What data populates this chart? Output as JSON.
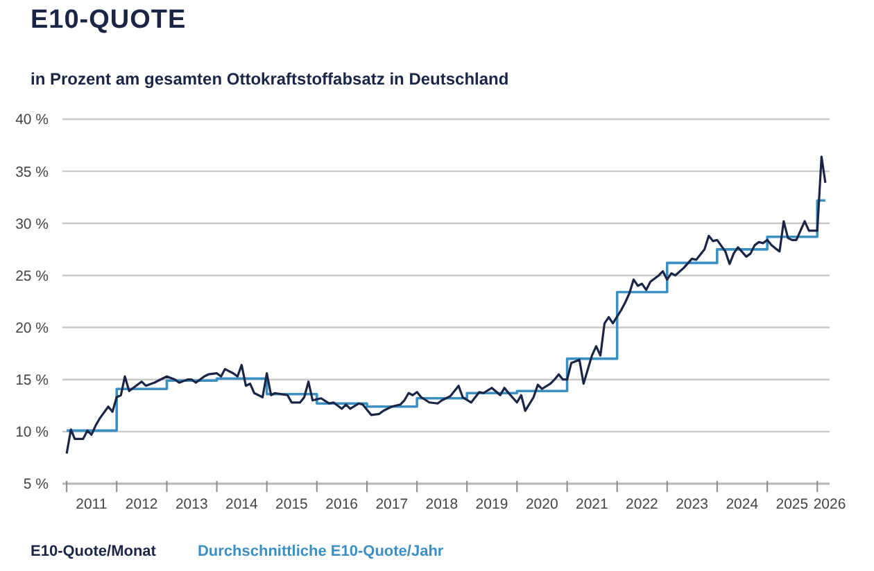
{
  "chart_data": {
    "type": "line",
    "title": "E10-QUOTE",
    "subtitle": "in Prozent am gesamten Ottokraftstoffabsatz in Deutschland",
    "xlim": [
      "2010-12",
      "2026-04"
    ],
    "xticks": [
      {
        "value": "2011-01-01",
        "label": null
      },
      {
        "value": "2011-07-01",
        "label": "2011"
      },
      {
        "value": "2012-01-01",
        "label": null
      },
      {
        "value": "2012-07-01",
        "label": "2012"
      },
      {
        "value": "2013-01-01",
        "label": null
      },
      {
        "value": "2013-07-01",
        "label": "2013"
      },
      {
        "value": "2014-01-01",
        "label": null
      },
      {
        "value": "2014-07-01",
        "label": "2014"
      },
      {
        "value": "2015-01-01",
        "label": null
      },
      {
        "value": "2015-07-01",
        "label": "2015"
      },
      {
        "value": "2016-01-01",
        "label": null
      },
      {
        "value": "2016-07-01",
        "label": "2016"
      },
      {
        "value": "2017-01-01",
        "label": null
      },
      {
        "value": "2017-07-01",
        "label": "2017"
      },
      {
        "value": "2018-01-01",
        "label": null
      },
      {
        "value": "2018-07-01",
        "label": "2018"
      },
      {
        "value": "2019-01-01",
        "label": null
      },
      {
        "value": "2019-07-01",
        "label": "2019"
      },
      {
        "value": "2020-01-01",
        "label": null
      },
      {
        "value": "2020-07-01",
        "label": "2020"
      },
      {
        "value": "2021-01-01",
        "label": null
      },
      {
        "value": "2021-07-01",
        "label": "2021"
      },
      {
        "value": "2022-01-01",
        "label": null
      },
      {
        "value": "2022-07-01",
        "label": "2022"
      },
      {
        "value": "2023-01-01",
        "label": null
      },
      {
        "value": "2023-07-01",
        "label": "2023"
      },
      {
        "value": "2024-01-01",
        "label": null
      },
      {
        "value": "2024-07-01",
        "label": "2024"
      },
      {
        "value": "2025-01-01",
        "label": null
      },
      {
        "value": "2025-07-01",
        "label": "2025"
      },
      {
        "value": "2026-01-01",
        "label": null
      },
      {
        "value": "2026-04-01",
        "label": "2026"
      }
    ],
    "ylim": [
      5,
      40
    ],
    "yticks": [
      {
        "value": 5,
        "label": "5 %"
      },
      {
        "value": 10,
        "label": "10 %"
      },
      {
        "value": 15,
        "label": "15 %"
      },
      {
        "value": 20,
        "label": "20 %"
      },
      {
        "value": 25,
        "label": "25 %"
      },
      {
        "value": 30,
        "label": "30 %"
      },
      {
        "value": 35,
        "label": "35 %"
      },
      {
        "value": 40,
        "label": "40 %"
      }
    ],
    "grid": "y",
    "legend": "bottom left",
    "marker": "none",
    "series": [
      {
        "name": "E10-Quote/Monat",
        "type": "line",
        "color": "#1b2545",
        "x": [
          "2011-01",
          "2011-02",
          "2011-03",
          "2011-05",
          "2011-06",
          "2011-07",
          "2011-08",
          "2011-09",
          "2011-11",
          "2011-12",
          "2012-01",
          "2012-02",
          "2012-03",
          "2012-04",
          "2012-05",
          "2012-07",
          "2012-08",
          "2012-10",
          "2012-12",
          "2013-01",
          "2013-03",
          "2013-04",
          "2013-06",
          "2013-07",
          "2013-08",
          "2013-10",
          "2013-11",
          "2014-01",
          "2014-02",
          "2014-03",
          "2014-05",
          "2014-06",
          "2014-07",
          "2014-08",
          "2014-09",
          "2014-10",
          "2014-12",
          "2015-01",
          "2015-02",
          "2015-03",
          "2015-06",
          "2015-07",
          "2015-09",
          "2015-10",
          "2015-11",
          "2015-12",
          "2016-02",
          "2016-04",
          "2016-05",
          "2016-07",
          "2016-08",
          "2016-09",
          "2016-11",
          "2016-12",
          "2017-02",
          "2017-04",
          "2017-05",
          "2017-07",
          "2017-09",
          "2017-10",
          "2017-11",
          "2017-12",
          "2018-01",
          "2018-02",
          "2018-04",
          "2018-06",
          "2018-07",
          "2018-09",
          "2018-11",
          "2018-12",
          "2019-02",
          "2019-04",
          "2019-05",
          "2019-07",
          "2019-09",
          "2019-10",
          "2019-11",
          "2020-01",
          "2020-02",
          "2020-03",
          "2020-05",
          "2020-06",
          "2020-07",
          "2020-09",
          "2020-10",
          "2020-11",
          "2020-12",
          "2021-01",
          "2021-02",
          "2021-04",
          "2021-05",
          "2021-07",
          "2021-08",
          "2021-09",
          "2021-10",
          "2021-11",
          "2021-12",
          "2022-02",
          "2022-03",
          "2022-04",
          "2022-05",
          "2022-06",
          "2022-07",
          "2022-08",
          "2022-09",
          "2022-11",
          "2022-12",
          "2023-01",
          "2023-02",
          "2023-03",
          "2023-05",
          "2023-07",
          "2023-08",
          "2023-10",
          "2023-11",
          "2023-12",
          "2024-01",
          "2024-03",
          "2024-04",
          "2024-05",
          "2024-06",
          "2024-08",
          "2024-09",
          "2024-10",
          "2024-11",
          "2024-12",
          "2025-01",
          "2025-02",
          "2025-03",
          "2025-04",
          "2025-05",
          "2025-06",
          "2025-07",
          "2025-08",
          "2025-10",
          "2025-11",
          "2026-01",
          "2026-02",
          "2026-03"
        ],
        "values": [
          7.9,
          10.2,
          9.3,
          9.3,
          10.1,
          9.7,
          10.6,
          11.3,
          12.4,
          11.9,
          13.3,
          13.5,
          15.3,
          13.9,
          14.2,
          14.8,
          14.4,
          14.7,
          15.1,
          15.3,
          15.0,
          14.7,
          15.0,
          15.0,
          14.7,
          15.3,
          15.5,
          15.6,
          15.3,
          16.0,
          15.6,
          15.3,
          16.4,
          14.4,
          14.6,
          13.7,
          13.3,
          15.6,
          13.5,
          13.7,
          13.5,
          12.8,
          12.8,
          13.3,
          14.8,
          13.0,
          13.2,
          12.7,
          12.8,
          12.2,
          12.6,
          12.2,
          12.7,
          12.6,
          11.6,
          11.7,
          12.0,
          12.4,
          12.6,
          13.0,
          13.7,
          13.5,
          13.8,
          13.3,
          12.8,
          12.7,
          13.0,
          13.4,
          14.4,
          13.3,
          12.8,
          13.8,
          13.7,
          14.2,
          13.5,
          14.2,
          13.7,
          12.8,
          13.5,
          12.0,
          13.3,
          14.5,
          14.1,
          14.6,
          15.0,
          15.5,
          15.0,
          15.0,
          16.6,
          16.9,
          14.6,
          17.3,
          18.2,
          17.3,
          20.4,
          21.0,
          20.4,
          21.7,
          22.4,
          23.3,
          24.6,
          24.0,
          24.2,
          23.6,
          24.4,
          25.0,
          25.4,
          24.6,
          25.2,
          25.0,
          25.7,
          26.6,
          26.5,
          27.5,
          28.8,
          28.3,
          28.4,
          27.3,
          26.1,
          27.1,
          27.7,
          26.8,
          27.1,
          27.9,
          28.2,
          28.1,
          28.4,
          27.9,
          27.6,
          27.3,
          30.2,
          28.6,
          28.4,
          28.4,
          30.2,
          29.3,
          29.3,
          36.4,
          33.9
        ]
      },
      {
        "name": "Durchschnittliche E10-Quote/Jahr",
        "type": "step",
        "color": "#3b8fc2",
        "x": [
          "2011-01",
          "2012-01",
          "2013-01",
          "2014-01",
          "2015-01",
          "2016-01",
          "2017-01",
          "2018-01",
          "2019-01",
          "2020-01",
          "2021-01",
          "2022-01",
          "2023-01",
          "2024-01",
          "2025-01",
          "2026-01",
          "2026-03"
        ],
        "values": [
          10.1,
          14.1,
          14.9,
          15.1,
          13.6,
          12.7,
          12.4,
          13.2,
          13.7,
          13.9,
          17.0,
          23.4,
          26.2,
          27.5,
          28.7,
          32.2,
          32.2
        ]
      }
    ]
  }
}
